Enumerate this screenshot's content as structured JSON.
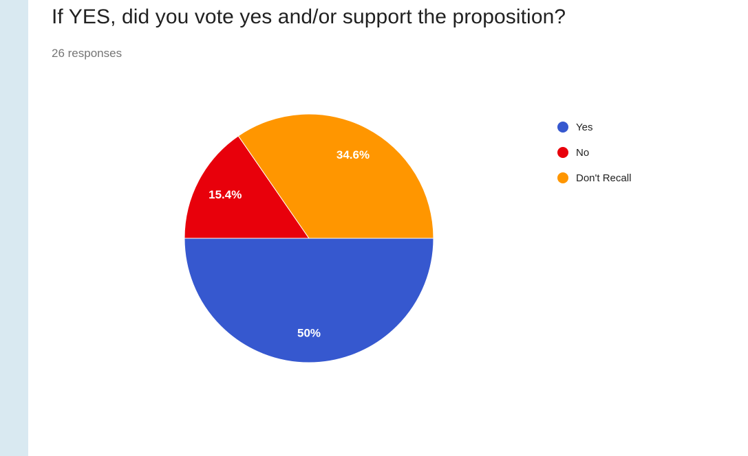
{
  "question": {
    "title": "If YES, did you vote yes and/or support the proposition?",
    "responses": "26 responses"
  },
  "chart_data": {
    "type": "pie",
    "categories": [
      "Yes",
      "No",
      "Don't Recall"
    ],
    "values": [
      50,
      15.4,
      34.6
    ],
    "labels": [
      "50%",
      "15.4%",
      "34.6%"
    ],
    "colors": [
      "#3658cf",
      "#e8000b",
      "#ff9600"
    ],
    "legend_position": "right"
  }
}
